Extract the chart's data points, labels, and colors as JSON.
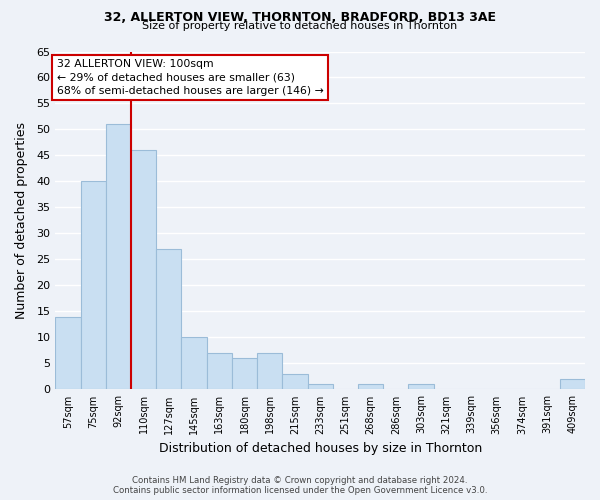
{
  "title1": "32, ALLERTON VIEW, THORNTON, BRADFORD, BD13 3AE",
  "title2": "Size of property relative to detached houses in Thornton",
  "xlabel": "Distribution of detached houses by size in Thornton",
  "ylabel": "Number of detached properties",
  "bar_labels": [
    "57sqm",
    "75sqm",
    "92sqm",
    "110sqm",
    "127sqm",
    "145sqm",
    "163sqm",
    "180sqm",
    "198sqm",
    "215sqm",
    "233sqm",
    "251sqm",
    "268sqm",
    "286sqm",
    "303sqm",
    "321sqm",
    "339sqm",
    "356sqm",
    "374sqm",
    "391sqm",
    "409sqm"
  ],
  "bar_values": [
    14,
    40,
    51,
    46,
    27,
    10,
    7,
    6,
    7,
    3,
    1,
    0,
    1,
    0,
    1,
    0,
    0,
    0,
    0,
    0,
    2
  ],
  "bar_color": "#c9dff2",
  "bar_edge_color": "#9bbcd8",
  "vline_color": "#cc0000",
  "annotation_box_text": "32 ALLERTON VIEW: 100sqm\n← 29% of detached houses are smaller (63)\n68% of semi-detached houses are larger (146) →",
  "annotation_box_edge_color": "#cc0000",
  "annotation_box_facecolor": "white",
  "ylim": [
    0,
    65
  ],
  "yticks": [
    0,
    5,
    10,
    15,
    20,
    25,
    30,
    35,
    40,
    45,
    50,
    55,
    60,
    65
  ],
  "footer_line1": "Contains HM Land Registry data © Crown copyright and database right 2024.",
  "footer_line2": "Contains public sector information licensed under the Open Government Licence v3.0.",
  "bg_color": "#eef2f8",
  "plot_bg_color": "#eef2f8",
  "grid_color": "#ffffff"
}
